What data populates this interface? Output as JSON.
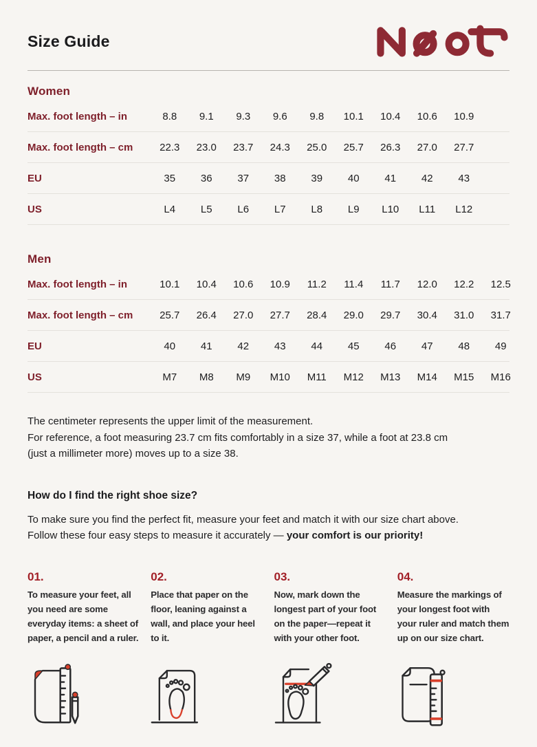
{
  "page": {
    "title": "Size Guide",
    "brand": "Naot"
  },
  "tables": [
    {
      "section": "Women",
      "rows": [
        {
          "label": "Max. foot length – in",
          "values": [
            "8.8",
            "9.1",
            "9.3",
            "9.6",
            "9.8",
            "10.1",
            "10.4",
            "10.6",
            "10.9"
          ]
        },
        {
          "label": "Max. foot length – cm",
          "values": [
            "22.3",
            "23.0",
            "23.7",
            "24.3",
            "25.0",
            "25.7",
            "26.3",
            "27.0",
            "27.7"
          ]
        },
        {
          "label": "EU",
          "values": [
            "35",
            "36",
            "37",
            "38",
            "39",
            "40",
            "41",
            "42",
            "43"
          ]
        },
        {
          "label": "US",
          "values": [
            "L4",
            "L5",
            "L6",
            "L7",
            "L8",
            "L9",
            "L10",
            "L11",
            "L12"
          ]
        }
      ]
    },
    {
      "section": "Men",
      "rows": [
        {
          "label": "Max. foot length – in",
          "values": [
            "10.1",
            "10.4",
            "10.6",
            "10.9",
            "11.2",
            "11.4",
            "11.7",
            "12.0",
            "12.2",
            "12.5"
          ]
        },
        {
          "label": "Max. foot length – cm",
          "values": [
            "25.7",
            "26.4",
            "27.0",
            "27.7",
            "28.4",
            "29.0",
            "29.7",
            "30.4",
            "31.0",
            "31.7"
          ]
        },
        {
          "label": "EU",
          "values": [
            "40",
            "41",
            "42",
            "43",
            "44",
            "45",
            "46",
            "47",
            "48",
            "49"
          ]
        },
        {
          "label": "US",
          "values": [
            "M7",
            "M8",
            "M9",
            "M10",
            "M11",
            "M12",
            "M13",
            "M14",
            "M15",
            "M16"
          ]
        }
      ]
    }
  ],
  "notes": {
    "line1": "The centimeter represents the upper limit of the measurement.",
    "line2": "For reference, a foot measuring 23.7 cm fits comfortably in a size 37, while a foot at 23.8 cm",
    "line3": "(just a millimeter more) moves up to a size 38."
  },
  "how_to": {
    "heading": "How do I find the right shoe size?",
    "intro_normal": "To make sure you find the perfect fit, measure your feet and match it with our size chart above. Follow these four easy steps to measure it accurately — ",
    "intro_bold": "your comfort is our priority!"
  },
  "steps": [
    {
      "number": "01.",
      "text": "To measure your feet, all you need are some everyday items: a sheet of paper, a pencil and a ruler.",
      "icon": "paper-pencil-ruler-icon"
    },
    {
      "number": "02.",
      "text": "Place that paper on the floor, leaning against a wall, and place your heel to it.",
      "icon": "heel-on-paper-icon"
    },
    {
      "number": "03.",
      "text": "Now, mark down the longest part of your foot on the paper—repeat it with your other foot.",
      "icon": "mark-foot-pencil-icon"
    },
    {
      "number": "04.",
      "text": "Measure the markings of your longest foot with your ruler and match them up on our size chart.",
      "icon": "measure-ruler-icon"
    }
  ],
  "colors": {
    "background": "#f7f5f2",
    "text": "#1e1e20",
    "brand_logo": "#8e2a34",
    "maroon": "#7e1f2a",
    "step_red": "#a21f27",
    "icon_red": "#d9402b",
    "divider": "#e4e1dc",
    "header_rule": "#b6b3ae"
  }
}
